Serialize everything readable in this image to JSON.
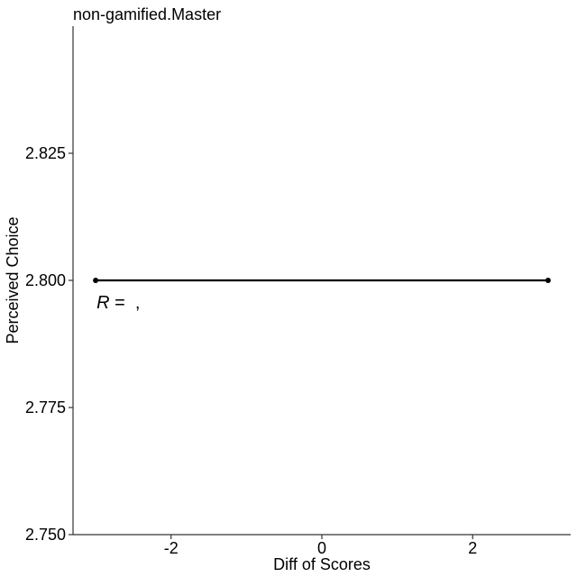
{
  "chart_data": {
    "type": "line",
    "title": "non-gamified.Master",
    "xlabel": "Diff of Scores",
    "ylabel": "Perceived Choice",
    "xlim": [
      -3.3,
      3.3
    ],
    "ylim": [
      2.75,
      2.85
    ],
    "xticks": [
      -2,
      0,
      2
    ],
    "xtick_labels": [
      "-2",
      "0",
      "2"
    ],
    "yticks": [
      2.75,
      2.775,
      2.8,
      2.825
    ],
    "ytick_labels": [
      "2.750",
      "2.775",
      "2.800",
      "2.825"
    ],
    "grid": false,
    "series": [
      {
        "x": [
          -3,
          3
        ],
        "y": [
          2.8,
          2.8
        ],
        "color": "#000000"
      }
    ],
    "annotation": {
      "prefix": "R",
      "text": " =  ,",
      "x": -3,
      "y": 2.797
    }
  }
}
